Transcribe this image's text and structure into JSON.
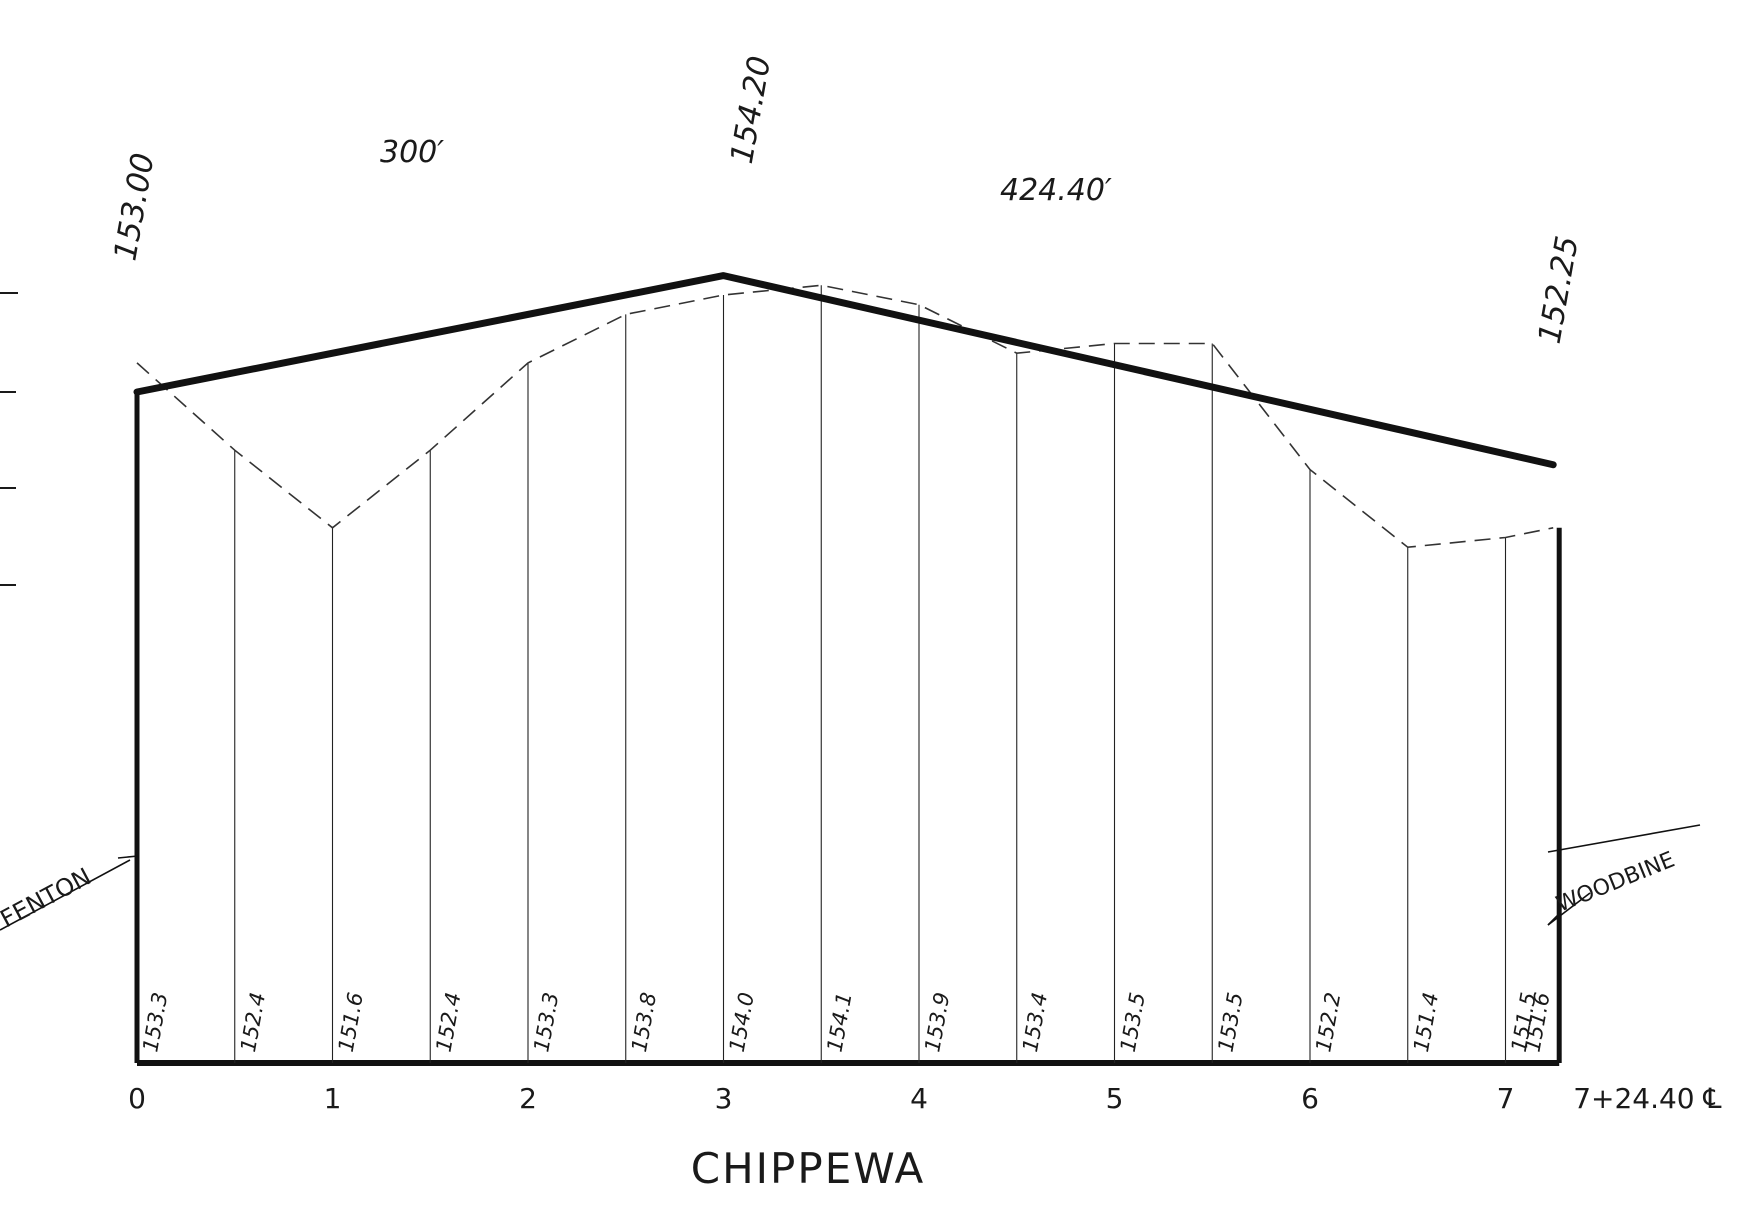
{
  "chart_data": {
    "type": "line",
    "title": "CHIPPEWA",
    "x_unit": "station",
    "stations": [
      0,
      0.5,
      1,
      1.5,
      2,
      2.5,
      3,
      3.5,
      4,
      4.5,
      5,
      5.5,
      6,
      6.5,
      7,
      7.244
    ],
    "station_tick_labels": [
      "0",
      "1",
      "2",
      "3",
      "4",
      "5",
      "6",
      "7",
      "7+24.40 ℄"
    ],
    "station_tick_values": [
      0,
      1,
      2,
      3,
      4,
      5,
      6,
      7,
      7.244
    ],
    "series": [
      {
        "kind": "existing_ground_dashed",
        "elevation_labels": [
          "153.3",
          "152.4",
          "151.6",
          "152.4",
          "153.3",
          "153.8",
          "154.0",
          "154.1",
          "153.9",
          "153.4",
          "153.5",
          "153.5",
          "152.2",
          "151.4",
          "151.5",
          "151.6"
        ],
        "values": [
          153.3,
          152.4,
          151.6,
          152.4,
          153.3,
          153.8,
          154.0,
          154.1,
          153.9,
          153.4,
          153.5,
          153.5,
          152.2,
          151.4,
          151.5,
          151.6
        ]
      },
      {
        "kind": "proposed_grade_heavy",
        "x": [
          0,
          3,
          7.244
        ],
        "values": [
          153.0,
          154.2,
          152.25
        ],
        "elevation_labels": [
          "153.00",
          "154.20",
          "152.25"
        ]
      }
    ],
    "segment_lengths": [
      "300′",
      "424.40′"
    ],
    "end_labels": {
      "left": "FENTON",
      "right": "WOODBINE"
    },
    "ylim": [
      149.0,
      154.8
    ]
  }
}
